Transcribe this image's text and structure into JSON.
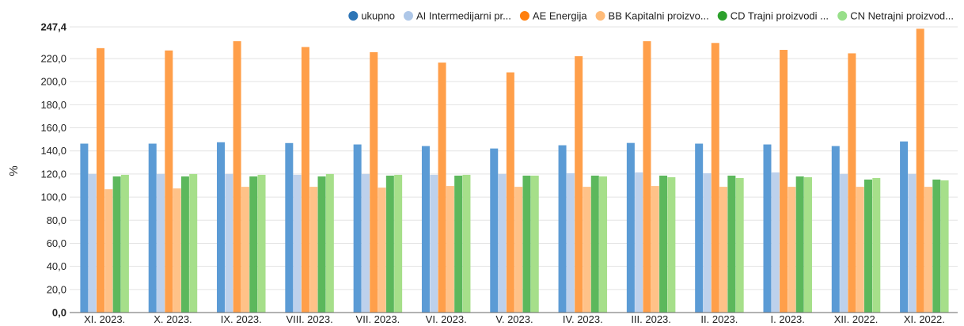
{
  "chart_data": {
    "type": "bar",
    "ylabel": "%",
    "ylim": [
      0,
      247.4
    ],
    "yticks": [
      "0,0",
      "20,0",
      "40,0",
      "60,0",
      "80,0",
      "100,0",
      "120,0",
      "140,0",
      "160,0",
      "180,0",
      "200,0",
      "220,0",
      "247,4"
    ],
    "ytick_values": [
      0,
      20,
      40,
      60,
      80,
      100,
      120,
      140,
      160,
      180,
      200,
      220,
      247.4
    ],
    "grid": true,
    "legend_position": "top-right",
    "categories": [
      "XI. 2023.",
      "X. 2023.",
      "IX. 2023.",
      "VIII. 2023.",
      "VII. 2023.",
      "VI. 2023.",
      "V. 2023.",
      "IV. 2023.",
      "III. 2023.",
      "II. 2023.",
      "I. 2023.",
      "XII. 2022.",
      "XI. 2022."
    ],
    "series": [
      {
        "name": "ukupno",
        "color": "#5b9bd5",
        "legend_color": "#2e75b6",
        "values": [
          146.3,
          146.3,
          147.5,
          146.8,
          145.6,
          144.2,
          142.1,
          144.9,
          146.9,
          146.3,
          145.6,
          144.2,
          148.2
        ]
      },
      {
        "name": "AI Intermedijarni pr...",
        "color": "#bdd1ec",
        "legend_color": "#aec7e8",
        "values": [
          120.0,
          120.0,
          120.0,
          119.3,
          120.0,
          119.3,
          120.0,
          120.7,
          121.4,
          120.7,
          121.4,
          120.0,
          120.0
        ]
      },
      {
        "name": "AE Energija",
        "color": "#ff9f4a",
        "legend_color": "#ff7f0e",
        "values": [
          229.0,
          227.0,
          235.0,
          230.0,
          225.5,
          216.5,
          208.0,
          222.0,
          235.0,
          233.5,
          227.5,
          224.5,
          245.8
        ]
      },
      {
        "name": "BB Kapitalni proizvo...",
        "color": "#ffc288",
        "legend_color": "#ffbb78",
        "values": [
          106.8,
          107.5,
          108.9,
          108.9,
          108.2,
          109.6,
          108.9,
          108.9,
          109.6,
          108.9,
          108.9,
          108.9,
          108.9
        ]
      },
      {
        "name": "CD Trajni proizvodi ...",
        "color": "#5cb85c",
        "legend_color": "#2ca02c",
        "values": [
          117.9,
          117.9,
          117.9,
          117.9,
          118.6,
          118.6,
          118.6,
          118.6,
          118.6,
          118.6,
          117.9,
          115.2,
          115.2
        ]
      },
      {
        "name": "CN Netrajni proizvod...",
        "color": "#a6df8a",
        "legend_color": "#98df8a",
        "values": [
          119.3,
          120.0,
          119.3,
          120.0,
          119.3,
          119.3,
          118.6,
          117.9,
          117.2,
          116.5,
          117.2,
          116.5,
          114.5
        ]
      }
    ]
  }
}
